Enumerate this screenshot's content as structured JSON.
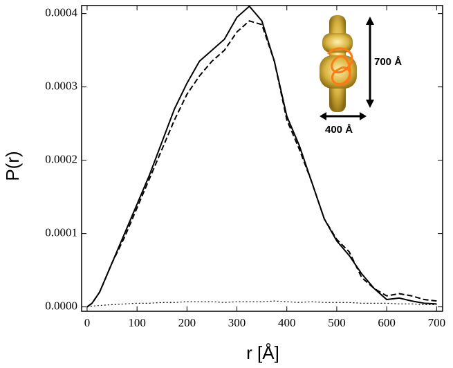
{
  "chart_data": {
    "type": "line",
    "x_label": "r [Å]",
    "y_label": "P(r)",
    "annotations": [
      "700 Å",
      "400 Å"
    ],
    "x": [
      0,
      10,
      25,
      50,
      75,
      100,
      125,
      150,
      175,
      200,
      225,
      250,
      275,
      300,
      325,
      350,
      375,
      400,
      425,
      450,
      475,
      500,
      525,
      550,
      575,
      600,
      625,
      650,
      675,
      700
    ],
    "series": [
      {
        "color": "#000000",
        "dash": "solid",
        "values": [
          0,
          5e-06,
          2e-05,
          6e-05,
          0.0001,
          0.00014,
          0.00018,
          0.000225,
          0.00027,
          0.000305,
          0.000335,
          0.00035,
          0.000365,
          0.000395,
          0.00041,
          0.00039,
          0.000335,
          0.00026,
          0.00022,
          0.00017,
          0.00012,
          9e-05,
          7e-05,
          4.5e-05,
          2.5e-05,
          1e-05,
          1.2e-05,
          8e-06,
          5e-06,
          4e-06
        ]
      },
      {
        "color": "#000000",
        "dash": "dashed",
        "values": [
          0,
          5e-06,
          2e-05,
          6e-05,
          9.5e-05,
          0.000135,
          0.000175,
          0.000215,
          0.000255,
          0.00029,
          0.000315,
          0.000335,
          0.00035,
          0.000375,
          0.00039,
          0.000385,
          0.000335,
          0.000255,
          0.000215,
          0.00017,
          0.00012,
          9.2e-05,
          7.5e-05,
          4e-05,
          2.5e-05,
          1.5e-05,
          1.8e-05,
          1.5e-05,
          1e-05,
          8e-06
        ]
      },
      {
        "color": "#000000",
        "dash": "dotted",
        "values": [
          0,
          1e-06,
          2e-06,
          3e-06,
          4e-06,
          5e-06,
          5e-06,
          6e-06,
          6e-06,
          7e-06,
          7e-06,
          7e-06,
          6e-06,
          7e-06,
          7e-06,
          7e-06,
          8e-06,
          7e-06,
          6e-06,
          7e-06,
          6e-06,
          6e-06,
          6e-06,
          5e-06,
          5e-06,
          5e-06,
          4e-06,
          4e-06,
          3e-06,
          3e-06
        ]
      }
    ],
    "xlim": [
      -11,
      712
    ],
    "ylim": [
      -6e-06,
      0.000411
    ],
    "xticks": [
      0,
      100,
      200,
      300,
      400,
      500,
      600,
      700
    ],
    "yticks": [
      {
        "value": 0,
        "label": "0.0000"
      },
      {
        "value": 0.0001,
        "label": "0.0001"
      },
      {
        "value": 0.0002,
        "label": "0.0002"
      },
      {
        "value": 0.0003,
        "label": "0.0003"
      },
      {
        "value": 0.0004,
        "label": "0.0004"
      }
    ]
  }
}
